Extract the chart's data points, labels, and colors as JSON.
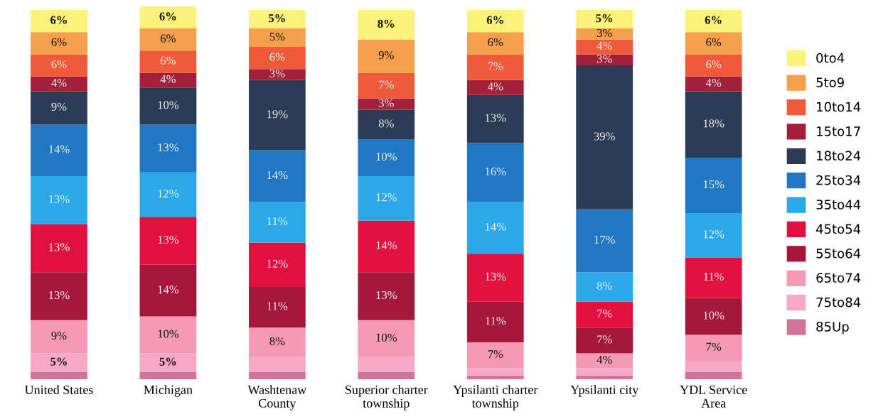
{
  "chart_data": {
    "type": "bar",
    "stacked": true,
    "legend": "right",
    "categories": [
      "United States",
      "Michigan",
      "Washtenaw\nCounty",
      "Superior charter\ntownship",
      "Ypsilanti charter\ntownship",
      "Ypsilanti city",
      "YDL Service\nArea"
    ],
    "series": [
      {
        "name": "85Up",
        "color": "#d07595",
        "values": [
          2,
          2,
          2,
          2,
          1,
          1,
          2
        ],
        "value_labels": [
          null,
          null,
          null,
          null,
          null,
          null,
          null
        ]
      },
      {
        "name": "75to84",
        "color": "#f7a8c6",
        "values": [
          5,
          5,
          4,
          4,
          2,
          2,
          3
        ],
        "value_labels": [
          "5%",
          "5%",
          null,
          null,
          null,
          null,
          null
        ]
      },
      {
        "name": "65to74",
        "color": "#f59ab4",
        "values": [
          9,
          10,
          8,
          10,
          7,
          4,
          7
        ],
        "value_labels": [
          "9%",
          "10%",
          "8%",
          "10%",
          "7%",
          "4%",
          "7%"
        ]
      },
      {
        "name": "55to64",
        "color": "#a3173b",
        "values": [
          13,
          14,
          11,
          13,
          11,
          7,
          10
        ],
        "value_labels": [
          "13%",
          "14%",
          "11%",
          "13%",
          "11%",
          "7%",
          "10%"
        ]
      },
      {
        "name": "45to54",
        "color": "#e0103f",
        "values": [
          13,
          13,
          12,
          14,
          13,
          7,
          11
        ],
        "value_labels": [
          "13%",
          "13%",
          "12%",
          "14%",
          "13%",
          "7%",
          "11%"
        ]
      },
      {
        "name": "35to44",
        "color": "#2aa8e8",
        "values": [
          13,
          12,
          11,
          12,
          14,
          8,
          12
        ],
        "value_labels": [
          "13%",
          "12%",
          "11%",
          "12%",
          "14%",
          "8%",
          "12%"
        ]
      },
      {
        "name": "25to34",
        "color": "#1f78c1",
        "values": [
          14,
          13,
          14,
          10,
          16,
          17,
          15
        ],
        "value_labels": [
          "14%",
          "13%",
          "14%",
          "10%",
          "16%",
          "17%",
          "15%"
        ]
      },
      {
        "name": "18to24",
        "color": "#2b3a55",
        "values": [
          9,
          10,
          19,
          8,
          13,
          39,
          18
        ],
        "value_labels": [
          "9%",
          "10%",
          "19%",
          "8%",
          "13%",
          "39%",
          "18%"
        ]
      },
      {
        "name": "15to17",
        "color": "#a3203a",
        "values": [
          4,
          4,
          3,
          3,
          4,
          3,
          4
        ],
        "value_labels": [
          "4%",
          "4%",
          "3%",
          "3%",
          "4%",
          "3%",
          "4%"
        ]
      },
      {
        "name": "10to14",
        "color": "#ee5a3a",
        "values": [
          6,
          6,
          6,
          7,
          7,
          4,
          6
        ],
        "value_labels": [
          "6%",
          "6%",
          "6%",
          "7%",
          "7%",
          "4%",
          "6%"
        ]
      },
      {
        "name": "5to9",
        "color": "#f5a04c",
        "values": [
          6,
          6,
          5,
          9,
          6,
          3,
          6
        ],
        "value_labels": [
          "6%",
          "6%",
          "5%",
          "9%",
          "6%",
          "3%",
          "6%"
        ]
      },
      {
        "name": "0to4",
        "color": "#fbf27a",
        "values": [
          6,
          6,
          5,
          8,
          6,
          5,
          6
        ],
        "value_labels": [
          "6%",
          "6%",
          "5%",
          "8%",
          "6%",
          "5%",
          "6%"
        ]
      }
    ]
  }
}
